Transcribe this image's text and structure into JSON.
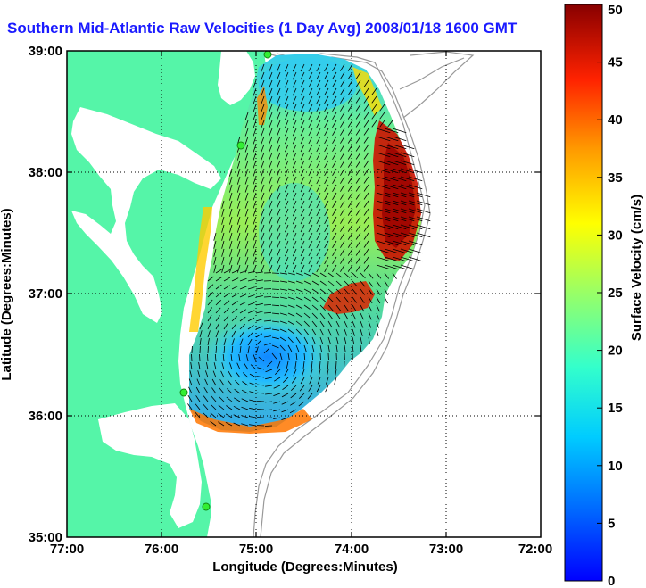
{
  "title": "Southern Mid-Atlantic Raw Velocities (1 Day Avg) 2008/01/18 1600 GMT",
  "x_axis": {
    "label": "Longitude (Degrees:Minutes)",
    "ticks": [
      "77:00",
      "76:00",
      "75:00",
      "74:00",
      "73:00",
      "72:00"
    ]
  },
  "y_axis": {
    "label": "Latitude (Degrees:Minutes)",
    "ticks": [
      "39:00",
      "38:00",
      "37:00",
      "36:00",
      "35:00"
    ]
  },
  "colorbar": {
    "label": "Surface Velocity (cm/s)",
    "min": 0,
    "max": 50,
    "ticks": [
      "0",
      "5",
      "10",
      "15",
      "20",
      "25",
      "30",
      "35",
      "40",
      "45",
      "50"
    ],
    "colormap": "jet"
  },
  "colors": {
    "land": "#55f5a8",
    "title": "#1a1aff",
    "stations": "#33ee33",
    "bathymetry": "#999999"
  },
  "map": {
    "lon_range": [
      -77,
      -72
    ],
    "lat_range": [
      35,
      39
    ],
    "grid": "dotted"
  }
}
